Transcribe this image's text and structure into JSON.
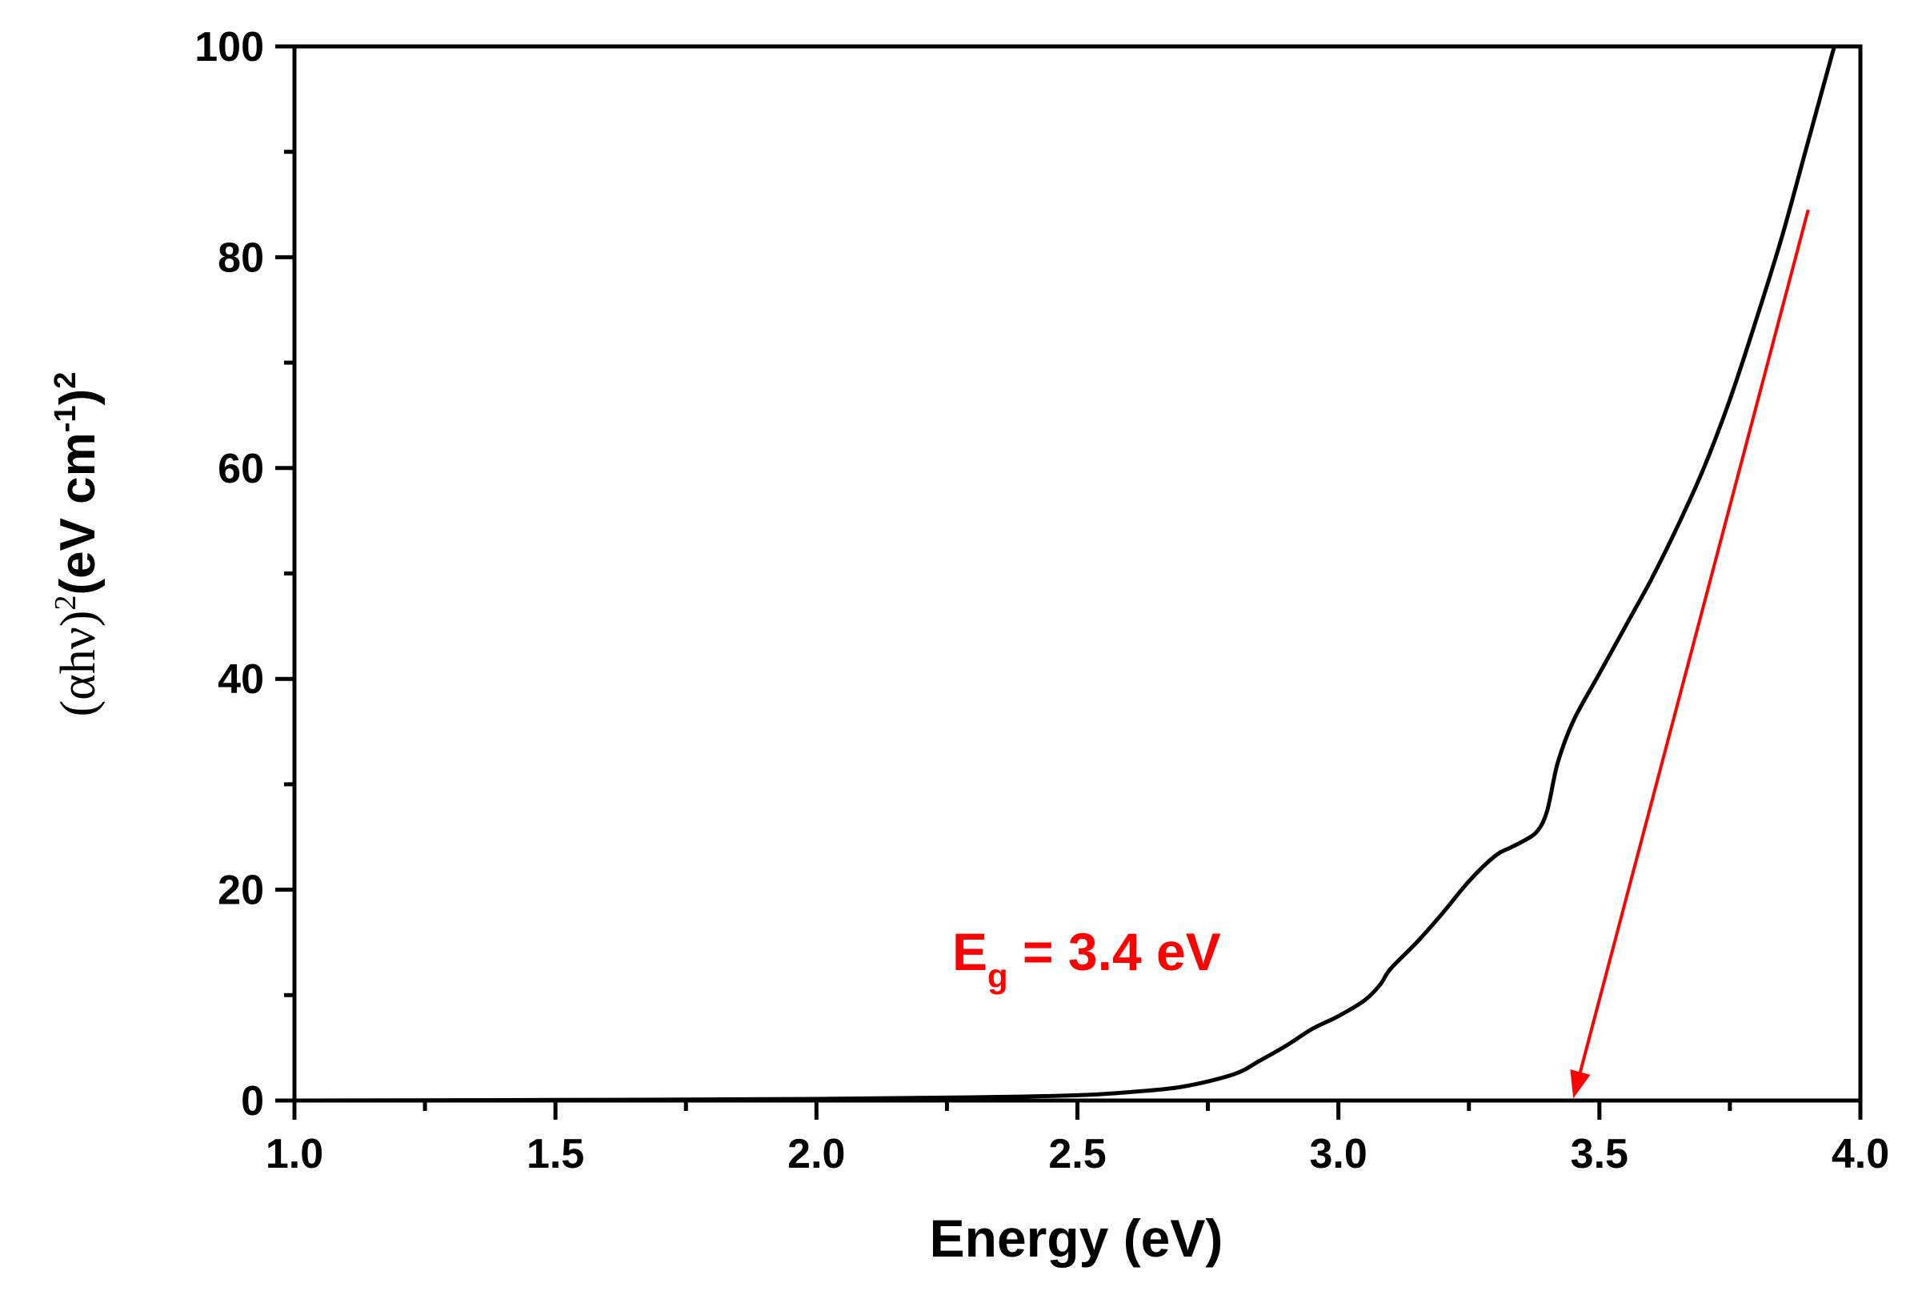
{
  "chart_data": {
    "type": "line",
    "title": "",
    "xlabel": "Energy (eV)",
    "ylabel": {
      "open_paren": "(",
      "alpha_h_nu": "αhν",
      "close_paren": ")",
      "sq1": "2",
      "units_open": "(eV cm",
      "units_exp": "-1",
      "units_close": ")",
      "sq2": "2"
    },
    "xlim": [
      1.0,
      4.0
    ],
    "ylim": [
      0,
      100
    ],
    "xticks": [
      1.0,
      1.5,
      2.0,
      2.5,
      3.0,
      3.5,
      4.0
    ],
    "xtick_labels": [
      "1.0",
      "1.5",
      "2.0",
      "2.5",
      "3.0",
      "3.5",
      "4.0"
    ],
    "xminor_ticks": [
      1.25,
      1.75,
      2.25,
      2.75,
      3.25,
      3.75
    ],
    "yticks": [
      0,
      20,
      40,
      60,
      80,
      100
    ],
    "ytick_labels": [
      "0",
      "20",
      "40",
      "60",
      "80",
      "100"
    ],
    "yminor_ticks": [
      10,
      30,
      50,
      70,
      90
    ],
    "grid": false,
    "series": [
      {
        "name": "(αhν)^2",
        "color": "#000000",
        "x": [
          1.0,
          1.5,
          2.0,
          2.3,
          2.5,
          2.6,
          2.7,
          2.8,
          2.85,
          2.9,
          2.95,
          3.0,
          3.05,
          3.08,
          3.1,
          3.15,
          3.2,
          3.25,
          3.3,
          3.33,
          3.35,
          3.38,
          3.4,
          3.42,
          3.45,
          3.5,
          3.55,
          3.6,
          3.65,
          3.7,
          3.75,
          3.8,
          3.85,
          3.9,
          3.95
        ],
        "y": [
          0.0,
          0.05,
          0.15,
          0.3,
          0.5,
          0.8,
          1.3,
          2.5,
          3.8,
          5.2,
          6.8,
          8.0,
          9.5,
          11.0,
          12.5,
          15.0,
          17.8,
          20.8,
          23.2,
          24.0,
          24.5,
          25.5,
          27.5,
          32.0,
          36.0,
          40.5,
          45.0,
          49.5,
          54.5,
          60.0,
          66.5,
          74.0,
          82.0,
          91.0,
          100.0
        ]
      }
    ],
    "annotations": [
      {
        "text_main": "E",
        "text_sub": "g",
        "text_rest": " = 3.4 eV",
        "color": "#ff0000",
        "arrow_from": [
          3.9,
          84.5
        ],
        "arrow_to": [
          3.45,
          0.2
        ]
      }
    ]
  }
}
